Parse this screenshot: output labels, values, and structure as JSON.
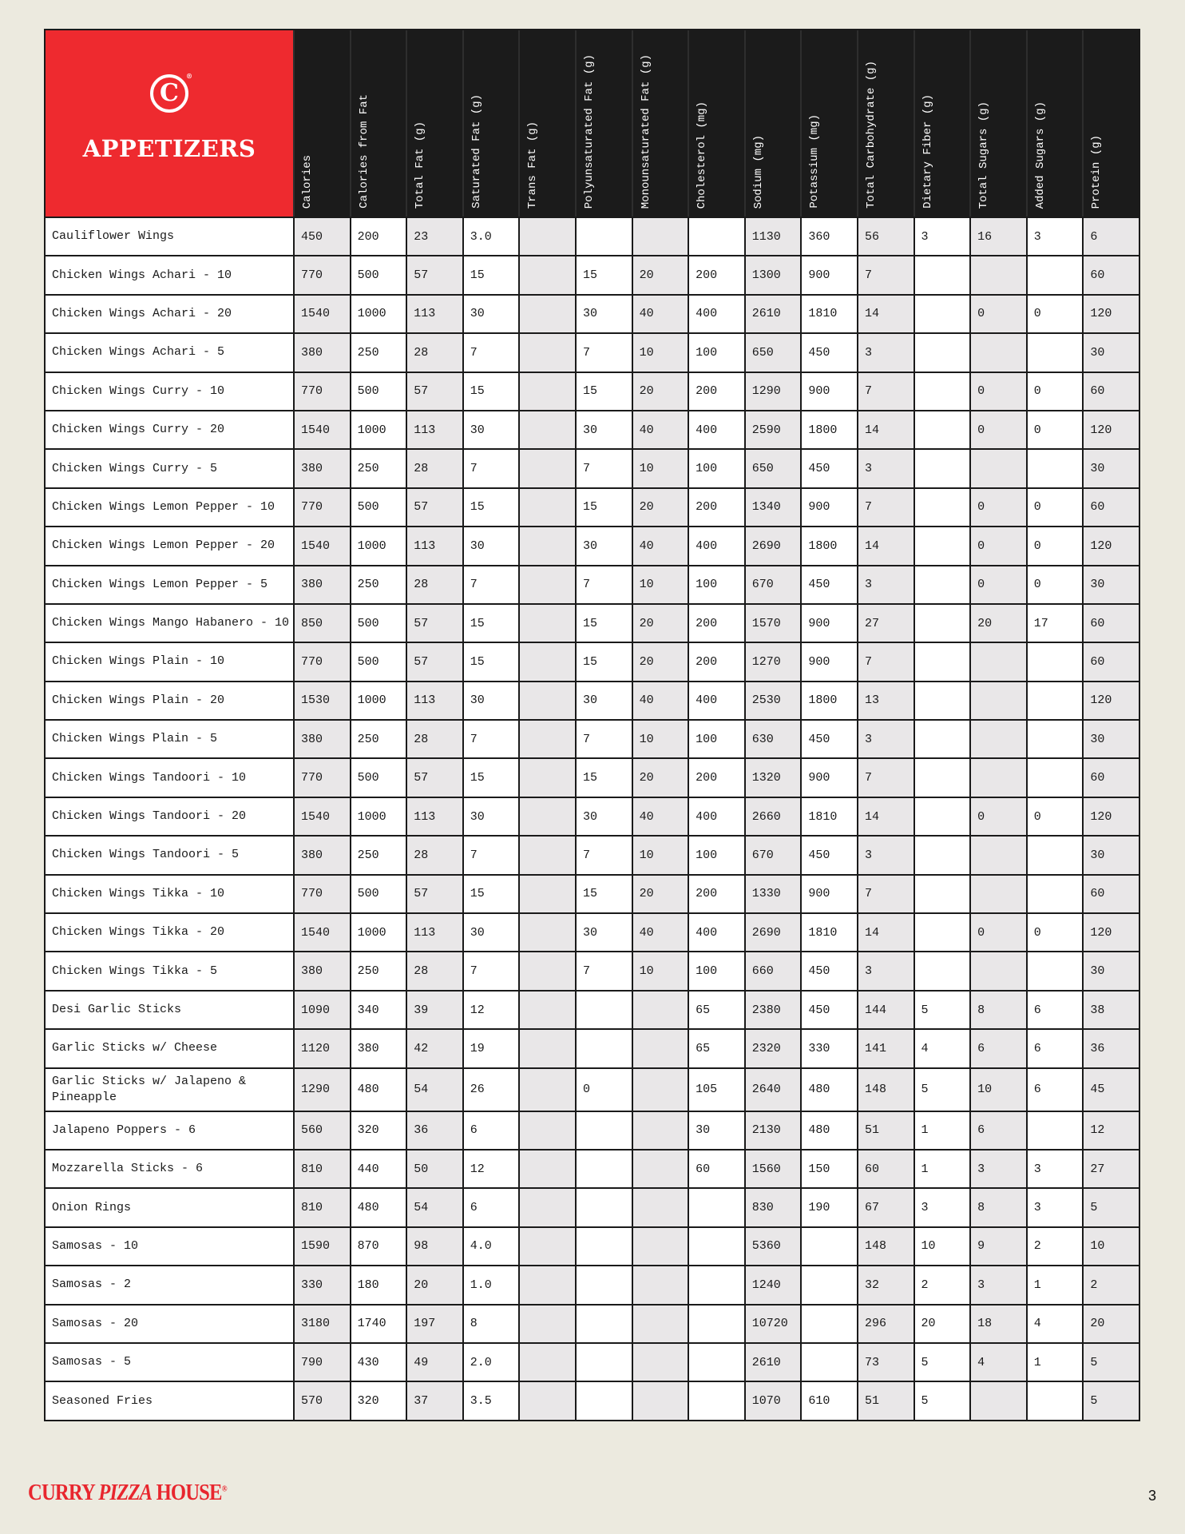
{
  "section_title": "APPETIZERS",
  "brand_mark": "C",
  "columns": [
    "Calories",
    "Calories from Fat",
    "Total Fat (g)",
    "Saturated Fat (g)",
    "Trans Fat (g)",
    "Polyunsaturated Fat (g)",
    "Monounsaturated Fat (g)",
    "Cholesterol (mg)",
    "Sodium (mg)",
    "Potassium (mg)",
    "Total Carbohydrate (g)",
    "Dietary Fiber (g)",
    "Total Sugars (g)",
    "Added Sugars (g)",
    "Protein (g)"
  ],
  "rows": [
    {
      "name": "Cauliflower Wings",
      "values": [
        "450",
        "200",
        "23",
        "3.0",
        "",
        "",
        "",
        "",
        "1130",
        "360",
        "56",
        "3",
        "16",
        "3",
        "6"
      ]
    },
    {
      "name": "Chicken Wings Achari - 10",
      "values": [
        "770",
        "500",
        "57",
        "15",
        "",
        "15",
        "20",
        "200",
        "1300",
        "900",
        "7",
        "",
        "",
        "",
        "60"
      ]
    },
    {
      "name": "Chicken Wings Achari - 20",
      "values": [
        "1540",
        "1000",
        "113",
        "30",
        "",
        "30",
        "40",
        "400",
        "2610",
        "1810",
        "14",
        "",
        "0",
        "0",
        "120"
      ]
    },
    {
      "name": "Chicken Wings Achari - 5",
      "values": [
        "380",
        "250",
        "28",
        "7",
        "",
        "7",
        "10",
        "100",
        "650",
        "450",
        "3",
        "",
        "",
        "",
        "30"
      ]
    },
    {
      "name": "Chicken Wings Curry - 10",
      "values": [
        "770",
        "500",
        "57",
        "15",
        "",
        "15",
        "20",
        "200",
        "1290",
        "900",
        "7",
        "",
        "0",
        "0",
        "60"
      ]
    },
    {
      "name": "Chicken Wings Curry - 20",
      "values": [
        "1540",
        "1000",
        "113",
        "30",
        "",
        "30",
        "40",
        "400",
        "2590",
        "1800",
        "14",
        "",
        "0",
        "0",
        "120"
      ]
    },
    {
      "name": "Chicken Wings Curry - 5",
      "values": [
        "380",
        "250",
        "28",
        "7",
        "",
        "7",
        "10",
        "100",
        "650",
        "450",
        "3",
        "",
        "",
        "",
        "30"
      ]
    },
    {
      "name": "Chicken Wings Lemon Pepper - 10",
      "values": [
        "770",
        "500",
        "57",
        "15",
        "",
        "15",
        "20",
        "200",
        "1340",
        "900",
        "7",
        "",
        "0",
        "0",
        "60"
      ]
    },
    {
      "name": "Chicken Wings Lemon Pepper - 20",
      "values": [
        "1540",
        "1000",
        "113",
        "30",
        "",
        "30",
        "40",
        "400",
        "2690",
        "1800",
        "14",
        "",
        "0",
        "0",
        "120"
      ]
    },
    {
      "name": "Chicken Wings Lemon Pepper - 5",
      "values": [
        "380",
        "250",
        "28",
        "7",
        "",
        "7",
        "10",
        "100",
        "670",
        "450",
        "3",
        "",
        "0",
        "0",
        "30"
      ]
    },
    {
      "name": "Chicken Wings Mango Habanero - 10",
      "values": [
        "850",
        "500",
        "57",
        "15",
        "",
        "15",
        "20",
        "200",
        "1570",
        "900",
        "27",
        "",
        "20",
        "17",
        "60"
      ]
    },
    {
      "name": "Chicken Wings Plain - 10",
      "values": [
        "770",
        "500",
        "57",
        "15",
        "",
        "15",
        "20",
        "200",
        "1270",
        "900",
        "7",
        "",
        "",
        "",
        "60"
      ]
    },
    {
      "name": "Chicken Wings Plain - 20",
      "values": [
        "1530",
        "1000",
        "113",
        "30",
        "",
        "30",
        "40",
        "400",
        "2530",
        "1800",
        "13",
        "",
        "",
        "",
        "120"
      ]
    },
    {
      "name": "Chicken Wings Plain - 5",
      "values": [
        "380",
        "250",
        "28",
        "7",
        "",
        "7",
        "10",
        "100",
        "630",
        "450",
        "3",
        "",
        "",
        "",
        "30"
      ]
    },
    {
      "name": "Chicken Wings Tandoori - 10",
      "values": [
        "770",
        "500",
        "57",
        "15",
        "",
        "15",
        "20",
        "200",
        "1320",
        "900",
        "7",
        "",
        "",
        "",
        "60"
      ]
    },
    {
      "name": "Chicken Wings Tandoori - 20",
      "values": [
        "1540",
        "1000",
        "113",
        "30",
        "",
        "30",
        "40",
        "400",
        "2660",
        "1810",
        "14",
        "",
        "0",
        "0",
        "120"
      ]
    },
    {
      "name": "Chicken Wings Tandoori - 5",
      "values": [
        "380",
        "250",
        "28",
        "7",
        "",
        "7",
        "10",
        "100",
        "670",
        "450",
        "3",
        "",
        "",
        "",
        "30"
      ]
    },
    {
      "name": "Chicken Wings Tikka - 10",
      "values": [
        "770",
        "500",
        "57",
        "15",
        "",
        "15",
        "20",
        "200",
        "1330",
        "900",
        "7",
        "",
        "",
        "",
        "60"
      ]
    },
    {
      "name": "Chicken Wings Tikka - 20",
      "values": [
        "1540",
        "1000",
        "113",
        "30",
        "",
        "30",
        "40",
        "400",
        "2690",
        "1810",
        "14",
        "",
        "0",
        "0",
        "120"
      ]
    },
    {
      "name": "Chicken Wings Tikka - 5",
      "values": [
        "380",
        "250",
        "28",
        "7",
        "",
        "7",
        "10",
        "100",
        "660",
        "450",
        "3",
        "",
        "",
        "",
        "30"
      ]
    },
    {
      "name": "Desi Garlic Sticks",
      "values": [
        "1090",
        "340",
        "39",
        "12",
        "",
        "",
        "",
        "65",
        "2380",
        "450",
        "144",
        "5",
        "8",
        "6",
        "38"
      ]
    },
    {
      "name": "Garlic Sticks w/ Cheese",
      "values": [
        "1120",
        "380",
        "42",
        "19",
        "",
        "",
        "",
        "65",
        "2320",
        "330",
        "141",
        "4",
        "6",
        "6",
        "36"
      ]
    },
    {
      "name": "Garlic Sticks w/ Jalapeno & Pineapple",
      "values": [
        "1290",
        "480",
        "54",
        "26",
        "",
        "0",
        "",
        "105",
        "2640",
        "480",
        "148",
        "5",
        "10",
        "6",
        "45"
      ],
      "tall": true
    },
    {
      "name": "Jalapeno Poppers - 6",
      "values": [
        "560",
        "320",
        "36",
        "6",
        "",
        "",
        "",
        "30",
        "2130",
        "480",
        "51",
        "1",
        "6",
        "",
        "12"
      ]
    },
    {
      "name": "Mozzarella Sticks - 6",
      "values": [
        "810",
        "440",
        "50",
        "12",
        "",
        "",
        "",
        "60",
        "1560",
        "150",
        "60",
        "1",
        "3",
        "3",
        "27"
      ]
    },
    {
      "name": "Onion Rings",
      "values": [
        "810",
        "480",
        "54",
        "6",
        "",
        "",
        "",
        "",
        "830",
        "190",
        "67",
        "3",
        "8",
        "3",
        "5"
      ]
    },
    {
      "name": "Samosas - 10",
      "values": [
        "1590",
        "870",
        "98",
        "4.0",
        "",
        "",
        "",
        "",
        "5360",
        "",
        "148",
        "10",
        "9",
        "2",
        "10"
      ]
    },
    {
      "name": "Samosas - 2",
      "values": [
        "330",
        "180",
        "20",
        "1.0",
        "",
        "",
        "",
        "",
        "1240",
        "",
        "32",
        "2",
        "3",
        "1",
        "2"
      ]
    },
    {
      "name": "Samosas - 20",
      "values": [
        "3180",
        "1740",
        "197",
        "8",
        "",
        "",
        "",
        "",
        "10720",
        "",
        "296",
        "20",
        "18",
        "4",
        "20"
      ]
    },
    {
      "name": "Samosas - 5",
      "values": [
        "790",
        "430",
        "49",
        "2.0",
        "",
        "",
        "",
        "",
        "2610",
        "",
        "73",
        "5",
        "4",
        "1",
        "5"
      ]
    },
    {
      "name": "Seasoned Fries",
      "values": [
        "570",
        "320",
        "37",
        "3.5",
        "",
        "",
        "",
        "",
        "1070",
        "610",
        "51",
        "5",
        "",
        "",
        "5"
      ]
    }
  ],
  "footer": {
    "brand": "CURRY PIZZA HOUSE",
    "page_number": "3"
  },
  "colors": {
    "brand_red": "#ee2a2f",
    "header_bg": "#1b1b1b",
    "page_bg": "#eceadf",
    "shade": "#e9e7e8"
  }
}
